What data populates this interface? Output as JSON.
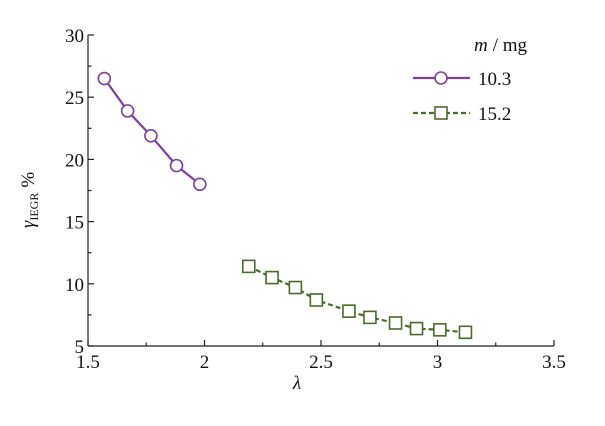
{
  "chart_data": {
    "type": "line",
    "xlabel": "λ",
    "ylabel": {
      "symbol": "γ",
      "subscript": "IEGR",
      "unit": "%"
    },
    "legend_title": {
      "symbol": "m",
      "unit": "/ mg"
    },
    "legend": "upper right",
    "xlim": [
      1.5,
      3.5
    ],
    "xticks": [
      1.5,
      2,
      2.5,
      3,
      3.5
    ],
    "xminorticks": [
      1.75,
      2.25,
      2.75,
      3.25
    ],
    "ylim": [
      5,
      30
    ],
    "yticks": [
      5,
      10,
      15,
      20,
      25,
      30
    ],
    "yminorticks": [
      7.5,
      12.5,
      17.5,
      22.5,
      27.5
    ],
    "series": [
      {
        "name": "10.3",
        "color": "#7d3f9f",
        "marker": "circle",
        "linestyle": "solid",
        "x": [
          1.57,
          1.67,
          1.77,
          1.88,
          1.98
        ],
        "values": [
          26.5,
          23.9,
          21.9,
          19.5,
          18.0
        ]
      },
      {
        "name": "15.2",
        "color": "#4b6a2b",
        "marker": "square",
        "linestyle": "dashed",
        "x": [
          2.19,
          2.29,
          2.39,
          2.48,
          2.62,
          2.71,
          2.82,
          2.91,
          3.01,
          3.12
        ],
        "values": [
          11.4,
          10.5,
          9.7,
          8.7,
          7.8,
          7.3,
          6.85,
          6.4,
          6.3,
          6.1
        ]
      }
    ]
  }
}
